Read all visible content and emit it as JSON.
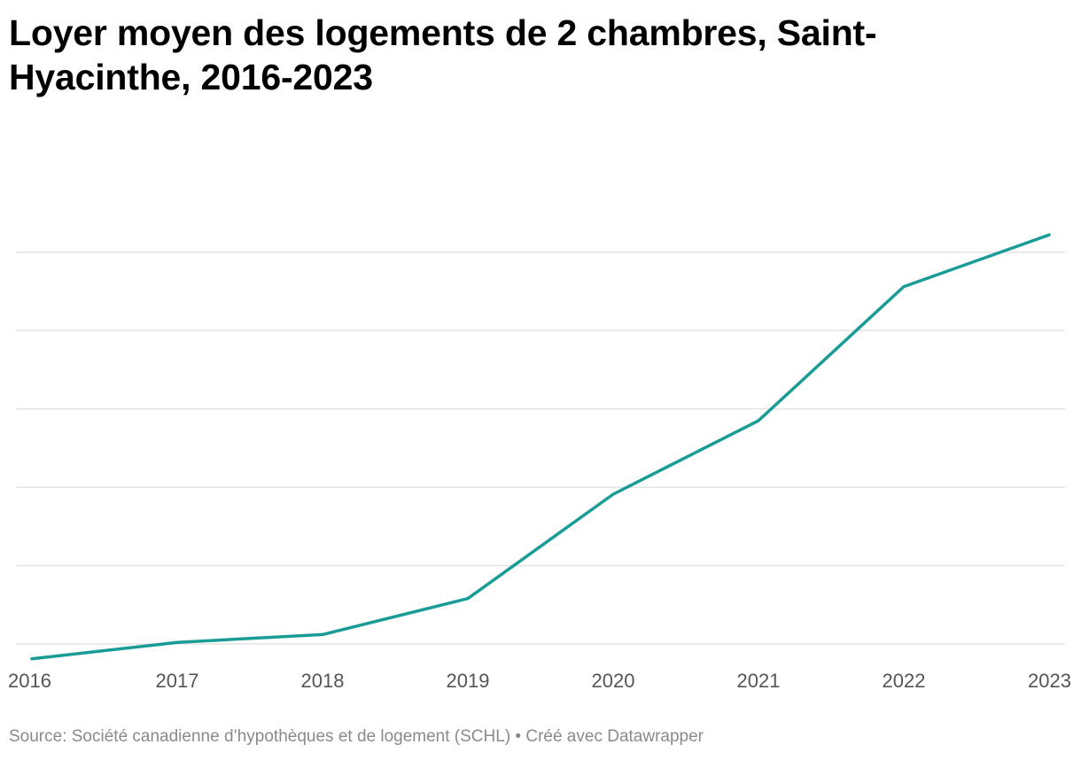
{
  "chart_data": {
    "type": "line",
    "title": "Loyer moyen des logements de 2 chambres, Saint-Hyacinthe, 2016-2023",
    "xlabel": "",
    "ylabel": "",
    "x": [
      "2016",
      "2017",
      "2018",
      "2019",
      "2020",
      "2021",
      "2022",
      "2023"
    ],
    "series": [
      {
        "values": [
          681,
          702,
          712,
          758,
          891,
          985,
          1156,
          1222
        ]
      }
    ],
    "ylim": [
      650,
      1200
    ],
    "ygrid": [
      700,
      800,
      900,
      1000,
      1100,
      1200
    ],
    "grid": true,
    "legend": "none",
    "line_color": "#1a9c96",
    "grid_color": "#e3e3e3"
  },
  "footer": {
    "source": "Source: Société canadienne d’hypothèques et de logement (SCHL) • Créé avec Datawrapper"
  }
}
